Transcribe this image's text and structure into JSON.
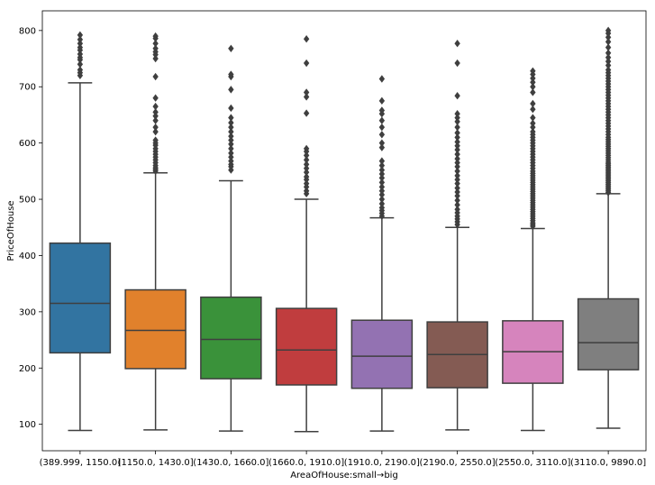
{
  "chart_data": {
    "type": "box",
    "title": "",
    "xlabel": "AreaOfHouse:small→big",
    "ylabel": "PriceOfHouse",
    "ylim": [
      53,
      835
    ],
    "yticks": [
      100,
      200,
      300,
      400,
      500,
      600,
      700,
      800
    ],
    "grid": false,
    "categories": [
      "(389.999, 1150.0]",
      "(1150.0, 1430.0]",
      "(1430.0, 1660.0]",
      "(1660.0, 1910.0]",
      "(1910.0, 2190.0]",
      "(2190.0, 2550.0]",
      "(2550.0, 3110.0]",
      "(3110.0, 9890.0]"
    ],
    "boxes": [
      {
        "category": "(389.999, 1150.0]",
        "color": "#3274a1",
        "whisker_low": 89,
        "q1": 227,
        "median": 315,
        "q3": 422,
        "whisker_high": 707,
        "outliers": [
          720,
          725,
          730,
          740,
          748,
          752,
          758,
          765,
          770,
          777,
          784,
          792
        ]
      },
      {
        "category": "(1150.0, 1430.0]",
        "color": "#e1812c",
        "whisker_low": 90,
        "q1": 199,
        "median": 267,
        "q3": 339,
        "whisker_high": 547,
        "outliers": [
          550,
          553,
          556,
          560,
          565,
          570,
          575,
          580,
          585,
          590,
          596,
          600,
          605,
          620,
          628,
          640,
          648,
          655,
          665,
          680,
          718,
          750,
          757,
          762,
          768,
          777,
          786,
          790
        ]
      },
      {
        "category": "(1430.0, 1660.0]",
        "color": "#3a923a",
        "whisker_low": 88,
        "q1": 181,
        "median": 251,
        "q3": 326,
        "whisker_high": 533,
        "outliers": [
          552,
          558,
          562,
          568,
          575,
          582,
          590,
          598,
          605,
          612,
          620,
          628,
          636,
          645,
          662,
          695,
          718,
          722,
          768
        ]
      },
      {
        "category": "(1660.0, 1910.0]",
        "color": "#c03d3e",
        "whisker_low": 87,
        "q1": 170,
        "median": 232,
        "q3": 306,
        "whisker_high": 500,
        "outliers": [
          510,
          515,
          522,
          528,
          535,
          540,
          548,
          555,
          562,
          570,
          578,
          585,
          590,
          653,
          682,
          690,
          742,
          785
        ]
      },
      {
        "category": "(1910.0, 2190.0]",
        "color": "#9372b2",
        "whisker_low": 88,
        "q1": 164,
        "median": 221,
        "q3": 285,
        "whisker_high": 467,
        "outliers": [
          470,
          475,
          480,
          485,
          492,
          500,
          508,
          515,
          522,
          530,
          538,
          545,
          552,
          560,
          568,
          592,
          600,
          615,
          628,
          640,
          652,
          658,
          675,
          714
        ]
      },
      {
        "category": "(2190.0, 2550.0]",
        "color": "#845b53",
        "whisker_low": 90,
        "q1": 165,
        "median": 224,
        "q3": 282,
        "whisker_high": 450,
        "outliers": [
          455,
          460,
          465,
          470,
          476,
          482,
          490,
          498,
          506,
          513,
          520,
          528,
          535,
          542,
          550,
          558,
          565,
          572,
          580,
          588,
          595,
          602,
          610,
          618,
          628,
          638,
          645,
          652,
          684,
          742,
          777
        ]
      },
      {
        "category": "(2550.0, 3110.0]",
        "color": "#d684bd",
        "whisker_low": 89,
        "q1": 173,
        "median": 229,
        "q3": 284,
        "whisker_high": 448,
        "outliers": [
          452,
          455,
          458,
          462,
          466,
          470,
          474,
          478,
          482,
          486,
          490,
          494,
          498,
          502,
          506,
          510,
          514,
          518,
          522,
          526,
          530,
          534,
          538,
          542,
          546,
          550,
          555,
          560,
          565,
          570,
          575,
          580,
          585,
          590,
          595,
          600,
          605,
          610,
          615,
          620,
          628,
          635,
          645,
          660,
          670,
          690,
          700,
          708,
          715,
          722,
          728
        ]
      },
      {
        "category": "(3110.0, 9890.0]",
        "color": "#7f7f7f",
        "whisker_low": 93,
        "q1": 197,
        "median": 245,
        "q3": 323,
        "whisker_high": 510,
        "outliers": [
          512,
          515,
          518,
          521,
          524,
          527,
          530,
          533,
          536,
          539,
          542,
          545,
          548,
          551,
          554,
          557,
          560,
          563,
          566,
          570,
          574,
          578,
          582,
          586,
          590,
          594,
          598,
          602,
          606,
          610,
          615,
          620,
          625,
          630,
          635,
          640,
          645,
          650,
          655,
          660,
          665,
          670,
          675,
          680,
          685,
          690,
          695,
          700,
          705,
          710,
          715,
          720,
          725,
          730,
          738,
          745,
          752,
          760,
          770,
          780,
          788,
          795,
          800
        ]
      }
    ]
  }
}
